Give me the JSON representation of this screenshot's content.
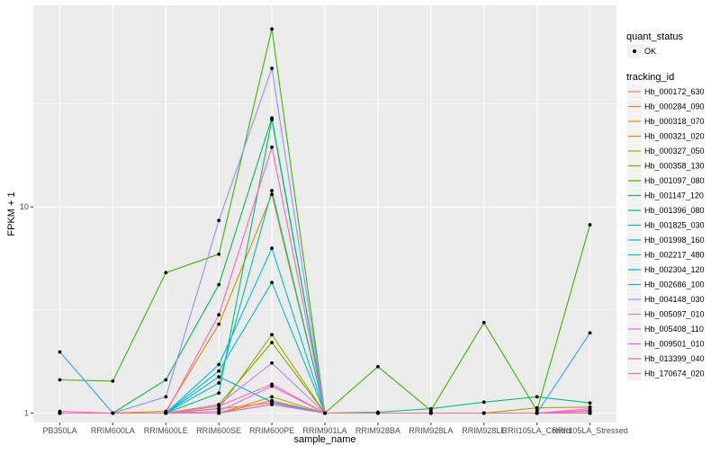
{
  "chart_data": {
    "type": "line",
    "xlabel": "sample_name",
    "ylabel": "FPKM + 1",
    "y_scale": "log10",
    "ylim": [
      0.9,
      95
    ],
    "y_ticks": [
      1,
      10
    ],
    "categories": [
      "PB350LA",
      "RRIM600LA",
      "RRIM600LE",
      "RRIM600SE",
      "RRIM600PE",
      "RRIM901LA",
      "RRIM928BA",
      "RRIM928LA",
      "RRIM928LE",
      "RRII105LA_Control",
      "RRII105LA_Stressed"
    ],
    "legend_shape": {
      "title": "quant_status",
      "entries": [
        "OK"
      ]
    },
    "legend_color_title": "tracking_id",
    "series": [
      {
        "name": "Hb_000172_630",
        "color": "#F8766D",
        "values": [
          1.0,
          1.0,
          1.0,
          1.05,
          1.12,
          1.0,
          1.0,
          1.0,
          1.0,
          1.0,
          1.02
        ]
      },
      {
        "name": "Hb_000284_090",
        "color": "#EA8331",
        "values": [
          1.0,
          1.0,
          1.0,
          1.0,
          1.15,
          1.0,
          1.0,
          1.0,
          1.0,
          1.0,
          1.0
        ]
      },
      {
        "name": "Hb_000318_070",
        "color": "#D89000",
        "values": [
          1.0,
          1.0,
          1.02,
          2.7,
          11.5,
          1.0,
          1.0,
          1.0,
          1.0,
          1.0,
          1.0
        ]
      },
      {
        "name": "Hb_000321_020",
        "color": "#C09B00",
        "values": [
          1.0,
          1.0,
          1.0,
          1.0,
          1.2,
          1.0,
          1.0,
          1.0,
          1.0,
          1.0,
          1.0
        ]
      },
      {
        "name": "Hb_000327_050",
        "color": "#A3A500",
        "values": [
          1.0,
          1.0,
          1.0,
          1.05,
          2.4,
          1.0,
          1.0,
          1.0,
          1.0,
          1.06,
          1.07
        ]
      },
      {
        "name": "Hb_000358_130",
        "color": "#7CAE00",
        "values": [
          1.0,
          1.0,
          1.0,
          1.1,
          2.2,
          1.0,
          1.0,
          1.0,
          1.0,
          1.0,
          1.0
        ]
      },
      {
        "name": "Hb_001097_080",
        "color": "#39B600",
        "values": [
          1.45,
          1.43,
          4.8,
          5.9,
          73,
          1.0,
          1.68,
          1.03,
          2.75,
          1.03,
          8.2
        ]
      },
      {
        "name": "Hb_001147_120",
        "color": "#00BB4E",
        "values": [
          1.0,
          1.0,
          1.45,
          4.2,
          27,
          1.0,
          1.0,
          1.0,
          1.0,
          1.0,
          1.0
        ]
      },
      {
        "name": "Hb_001396_080",
        "color": "#00BF7D",
        "values": [
          1.0,
          1.0,
          1.0,
          1.25,
          26.5,
          1.0,
          1.01,
          1.05,
          1.13,
          1.2,
          1.12
        ]
      },
      {
        "name": "Hb_001825_030",
        "color": "#00C1A3",
        "values": [
          1.0,
          1.0,
          1.0,
          1.4,
          12.0,
          1.0,
          1.0,
          1.0,
          1.0,
          1.0,
          1.0
        ]
      },
      {
        "name": "Hb_001998_160",
        "color": "#00BFC4",
        "values": [
          1.0,
          1.0,
          1.0,
          1.6,
          4.3,
          1.0,
          1.0,
          1.0,
          1.0,
          1.0,
          1.0
        ]
      },
      {
        "name": "Hb_002217_480",
        "color": "#00BAE0",
        "values": [
          1.0,
          1.0,
          1.0,
          1.72,
          6.3,
          1.0,
          1.0,
          1.0,
          1.0,
          1.0,
          1.0
        ]
      },
      {
        "name": "Hb_002304_120",
        "color": "#00B0F6",
        "values": [
          1.0,
          1.0,
          1.0,
          1.5,
          1.13,
          1.0,
          1.0,
          1.0,
          1.0,
          1.0,
          1.0
        ]
      },
      {
        "name": "Hb_002686_100",
        "color": "#35A2FF",
        "values": [
          1.98,
          1.0,
          1.0,
          1.0,
          1.1,
          1.0,
          1.0,
          1.0,
          1.0,
          1.0,
          2.45
        ]
      },
      {
        "name": "Hb_004148_030",
        "color": "#9590FF",
        "values": [
          1.0,
          1.0,
          1.2,
          8.6,
          47,
          1.0,
          1.0,
          1.0,
          1.0,
          1.0,
          1.0
        ]
      },
      {
        "name": "Hb_005097_010",
        "color": "#C77CFF",
        "values": [
          1.0,
          1.0,
          1.0,
          1.1,
          1.75,
          1.0,
          1.0,
          1.0,
          1.0,
          1.0,
          1.0
        ]
      },
      {
        "name": "Hb_005408_110",
        "color": "#E76BF3",
        "values": [
          1.0,
          1.0,
          1.0,
          1.02,
          1.35,
          1.0,
          1.0,
          1.0,
          1.0,
          1.0,
          1.05
        ]
      },
      {
        "name": "Hb_009501_010",
        "color": "#FA62DB",
        "values": [
          1.0,
          1.0,
          1.0,
          1.0,
          1.1,
          1.0,
          1.0,
          1.0,
          1.0,
          1.0,
          1.03
        ]
      },
      {
        "name": "Hb_013399_040",
        "color": "#FF62BC",
        "values": [
          1.0,
          1.0,
          1.0,
          3.0,
          19.5,
          1.0,
          1.0,
          1.0,
          1.0,
          1.0,
          1.0
        ]
      },
      {
        "name": "Hb_170674_020",
        "color": "#FF6C91",
        "values": [
          1.02,
          1.0,
          1.0,
          1.08,
          1.38,
          1.0,
          1.0,
          1.0,
          1.0,
          1.0,
          1.0
        ]
      }
    ]
  }
}
